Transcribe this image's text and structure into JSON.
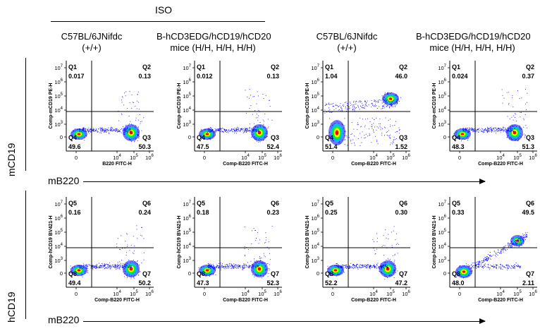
{
  "header": {
    "iso_label": "ISO"
  },
  "columns": [
    {
      "title_line1": "C57BL/6JNifdc",
      "title_line2": "(+/+)"
    },
    {
      "title_line1": "B-hCD3EDG/hCD19/hCD20",
      "title_line2": "mice (H/H, H/H, H/H)"
    },
    {
      "title_line1": "C57BL/6JNifdc",
      "title_line2": "(+/+)"
    },
    {
      "title_line1": "B-hCD3EDG/hCD19/hCD20",
      "title_line2": "mice (H/H, H/H, H/H)"
    }
  ],
  "rows": [
    {
      "row_label": "mCD19",
      "arrow_label": "mB220",
      "y_axis_title": "Comp-mCD19 PE-H",
      "x_axis_title": "B220 FITC-H"
    },
    {
      "row_label": "hCD19",
      "arrow_label": "mB220",
      "y_axis_title": "Comp-hCD19 BV421-H",
      "x_axis_title": "Comp-B220 FITC-H"
    }
  ],
  "x_axis_title_row1_alt": "Comp-B220 FITC-H",
  "y_ticks": [
    {
      "base": "10",
      "exp": "7"
    },
    {
      "base": "10",
      "exp": "6"
    },
    {
      "base": "10",
      "exp": "5"
    },
    {
      "base": "10",
      "exp": "4"
    },
    {
      "base": "10",
      "exp": "3"
    },
    {
      "base": "0",
      "exp": ""
    }
  ],
  "x_ticks": [
    {
      "base": "0",
      "exp": ""
    },
    {
      "base": "10",
      "exp": "4"
    },
    {
      "base": "10",
      "exp": "5"
    },
    {
      "base": "10",
      "exp": "6"
    }
  ],
  "panels": [
    {
      "id": "r1c1",
      "x_title_key": "B220 FITC-H",
      "quadrants": [
        {
          "name": "Q1",
          "value": "0.017"
        },
        {
          "name": "Q2",
          "value": "0.13"
        },
        {
          "name": "Q3",
          "value": "50.3"
        },
        {
          "name": "Q4",
          "value": "49.6"
        }
      ],
      "pattern": "two-pop-bottom"
    },
    {
      "id": "r1c2",
      "x_title_key": "Comp-B220 FITC-H",
      "quadrants": [
        {
          "name": "Q1",
          "value": "0.012"
        },
        {
          "name": "Q2",
          "value": "0.13"
        },
        {
          "name": "Q3",
          "value": "52.4"
        },
        {
          "name": "Q4",
          "value": "47.5"
        }
      ],
      "pattern": "two-pop-bottom"
    },
    {
      "id": "r1c3",
      "x_title_key": "Comp-B220 FITC-H",
      "quadrants": [
        {
          "name": "Q1",
          "value": "1.04"
        },
        {
          "name": "Q2",
          "value": "46.0"
        },
        {
          "name": "Q3",
          "value": "1.52"
        },
        {
          "name": "Q4",
          "value": "51.4"
        }
      ],
      "pattern": "diag-upper-right"
    },
    {
      "id": "r1c4",
      "x_title_key": "Comp-B220 FITC-H",
      "quadrants": [
        {
          "name": "Q1",
          "value": "0.024"
        },
        {
          "name": "Q2",
          "value": "0.37"
        },
        {
          "name": "Q3",
          "value": "51.3"
        },
        {
          "name": "Q4",
          "value": "48.3"
        }
      ],
      "pattern": "two-pop-bottom"
    },
    {
      "id": "r2c1",
      "x_title_key": "Comp-B220 FITC-H",
      "quadrants": [
        {
          "name": "Q5",
          "value": "0.16"
        },
        {
          "name": "Q6",
          "value": "0.24"
        },
        {
          "name": "Q7",
          "value": "50.2"
        },
        {
          "name": "Q8",
          "value": "49.4"
        }
      ],
      "pattern": "two-pop-bottom"
    },
    {
      "id": "r2c2",
      "x_title_key": "Comp-B220 FITC-H",
      "quadrants": [
        {
          "name": "Q5",
          "value": "0.18"
        },
        {
          "name": "Q6",
          "value": "0.23"
        },
        {
          "name": "Q7",
          "value": "52.3"
        },
        {
          "name": "Q8",
          "value": "47.3"
        }
      ],
      "pattern": "two-pop-bottom"
    },
    {
      "id": "r2c3",
      "x_title_key": "Comp-B220 FITC-H",
      "quadrants": [
        {
          "name": "Q5",
          "value": "0.25"
        },
        {
          "name": "Q6",
          "value": "0.30"
        },
        {
          "name": "Q7",
          "value": "47.2"
        },
        {
          "name": "Q8",
          "value": "52.2"
        }
      ],
      "pattern": "two-pop-bottom"
    },
    {
      "id": "r2c4",
      "x_title_key": "Comp-B220 FITC-H",
      "quadrants": [
        {
          "name": "Q5",
          "value": "0.33"
        },
        {
          "name": "Q6",
          "value": "49.5"
        },
        {
          "name": "Q7",
          "value": "2.11"
        },
        {
          "name": "Q8",
          "value": "48.0"
        }
      ],
      "pattern": "diag-upper-right"
    }
  ],
  "colors": {
    "density_high": "#ff0000",
    "density_mid1": "#ffff00",
    "density_mid2": "#00ff00",
    "density_mid3": "#00c8ff",
    "density_low": "#0000ff",
    "gate_line": "#000000"
  }
}
